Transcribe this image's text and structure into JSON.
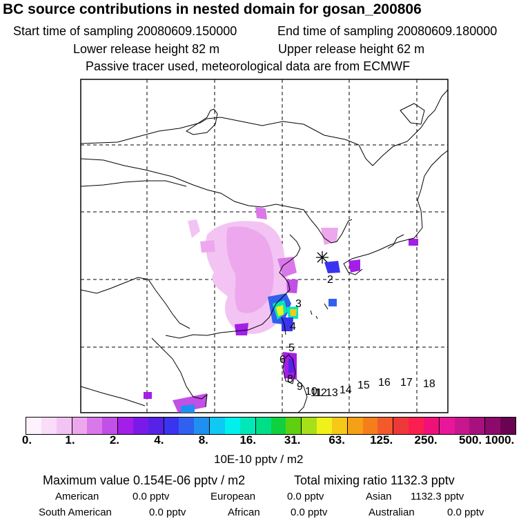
{
  "header": {
    "title": "BC  source contributions in nested domain for gosan_200806",
    "start_time": "Start time of sampling 20080609.150000",
    "end_time": "End time of sampling 20080609.180000",
    "lower_height": "Lower release height   82 m",
    "upper_height": "Upper release height   62 m",
    "tracer_note": "Passive tracer used, meteorological data are from ECMWF"
  },
  "chart_data": {
    "type": "heatmap",
    "title": "BC  source contributions in nested domain for gosan_200806",
    "colorbar": {
      "unit": "10E-10 pptv / m2",
      "tick_labels": [
        "0.",
        "1.",
        "2.",
        "4.",
        "8.",
        "16.",
        "31.",
        "63.",
        "125.",
        "250.",
        "500.",
        "1000."
      ],
      "colors": [
        "#fdf2fd",
        "#f8dcf8",
        "#f3c4f3",
        "#eda8ed",
        "#d978e8",
        "#c24fe6",
        "#a31ee6",
        "#7a1ae8",
        "#5522e6",
        "#3b34ef",
        "#3060ee",
        "#1f8ff0",
        "#10c8f4",
        "#00f0ee",
        "#00e8b8",
        "#00df88",
        "#10d040",
        "#5ed010",
        "#a6e018",
        "#f0f01a",
        "#f5c81a",
        "#f6a018",
        "#f57e1a",
        "#f25a2c",
        "#ee3838",
        "#fa1f4e",
        "#f0107a",
        "#e8169a",
        "#c8168f",
        "#a8107e",
        "#8c0a6c",
        "#6a0452"
      ]
    },
    "receptor": "gosan",
    "trajectory_labels": [
      "2",
      "3",
      "4",
      "5",
      "6",
      "8",
      "9",
      "10",
      "11",
      "12",
      "13",
      "14",
      "15",
      "16",
      "17",
      "18"
    ],
    "max_value": "0.154E-06",
    "total_mixing_ratio": "1132.3",
    "contributions": {
      "American": "0.0 pptv",
      "European": "0.0 pptv",
      "Asian": "1132.3 pptv",
      "South American": "0.0 pptv",
      "African": "0.0 pptv",
      "Australian": "0.0 pptv"
    }
  },
  "footer": {
    "max_label": "Maximum value  0.154E-06 pptv / m2",
    "total_label": "Total mixing ratio      1132.3 pptv",
    "american_label": "American",
    "american_value": "0.0 pptv",
    "european_label": "European",
    "european_value": "0.0 pptv",
    "asian_label": "Asian",
    "asian_value": "1132.3 pptv",
    "samerican_label": "South American",
    "samerican_value": "0.0 pptv",
    "african_label": "African",
    "african_value": "0.0 pptv",
    "australian_label": "Australian",
    "australian_value": "0.0 pptv"
  }
}
